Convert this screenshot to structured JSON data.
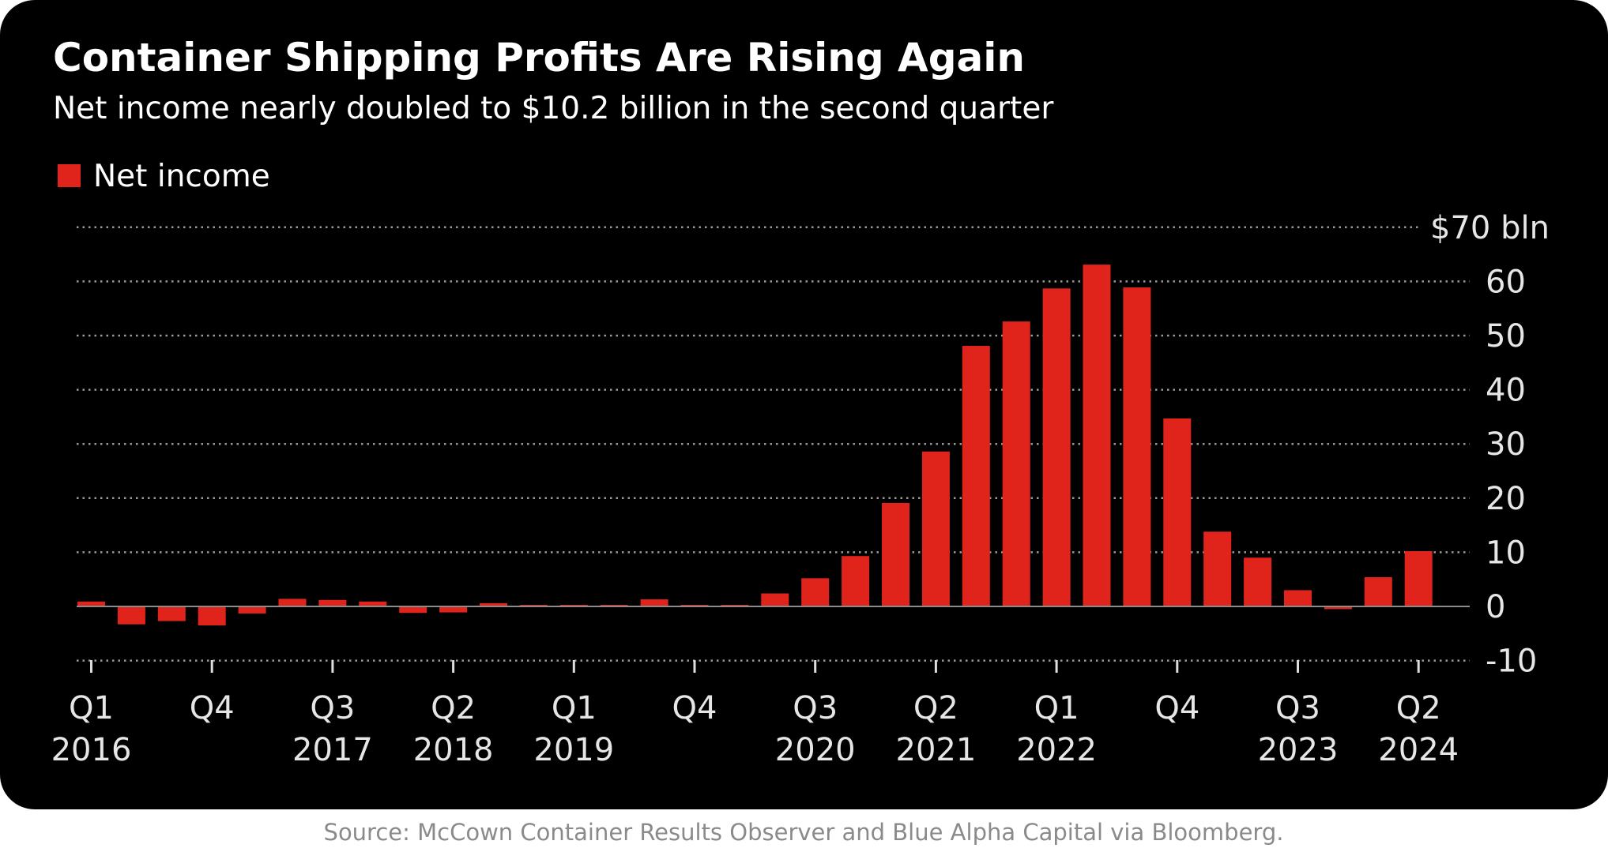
{
  "chart_data": {
    "type": "bar",
    "title": "Container Shipping Profits Are Rising Again",
    "subtitle": "Net income nearly doubled to $10.2 billion in the second quarter",
    "legend": [
      {
        "name": "Net income",
        "color": "#e0241c"
      }
    ],
    "legend_position": "top-left",
    "xlabel": "",
    "ylabel": "",
    "y_unit_label": "$70 bln",
    "ylim": [
      -10,
      70
    ],
    "yticks": [
      -10,
      0,
      10,
      20,
      30,
      40,
      50,
      60,
      70
    ],
    "ytick_labels": [
      "-10",
      "0",
      "10",
      "20",
      "30",
      "40",
      "50",
      "60",
      "$70 bln"
    ],
    "grid": true,
    "categories": [
      "Q1 2016",
      "Q2 2016",
      "Q3 2016",
      "Q4 2016",
      "Q1 2017",
      "Q2 2017",
      "Q3 2017",
      "Q4 2017",
      "Q1 2018",
      "Q2 2018",
      "Q3 2018",
      "Q4 2018",
      "Q1 2019",
      "Q2 2019",
      "Q3 2019",
      "Q4 2019",
      "Q1 2020",
      "Q2 2020",
      "Q3 2020",
      "Q4 2020",
      "Q1 2021",
      "Q2 2021",
      "Q3 2021",
      "Q4 2021",
      "Q1 2022",
      "Q2 2022",
      "Q3 2022",
      "Q4 2022",
      "Q1 2023",
      "Q2 2023",
      "Q3 2023",
      "Q4 2023",
      "Q1 2024",
      "Q2 2024"
    ],
    "series": [
      {
        "name": "Net income",
        "values": [
          0.9,
          -3.3,
          -2.7,
          -3.5,
          -1.3,
          1.4,
          1.2,
          0.9,
          -1.2,
          -1.1,
          0.6,
          0.1,
          0.1,
          0.1,
          1.3,
          0.1,
          0.1,
          2.4,
          5.2,
          9.3,
          19.1,
          28.6,
          48.1,
          52.6,
          58.7,
          63.1,
          58.9,
          34.7,
          13.8,
          9.0,
          3.0,
          -0.5,
          5.4,
          10.2
        ]
      }
    ],
    "xtick_labels": [
      {
        "index": 0,
        "line1": "Q1",
        "line2": "2016"
      },
      {
        "index": 3,
        "line1": "Q4",
        "line2": ""
      },
      {
        "index": 6,
        "line1": "Q3",
        "line2": "2017"
      },
      {
        "index": 9,
        "line1": "Q2",
        "line2": "2018"
      },
      {
        "index": 12,
        "line1": "Q1",
        "line2": "2019"
      },
      {
        "index": 15,
        "line1": "Q4",
        "line2": ""
      },
      {
        "index": 18,
        "line1": "Q3",
        "line2": "2020"
      },
      {
        "index": 21,
        "line1": "Q2",
        "line2": "2021"
      },
      {
        "index": 24,
        "line1": "Q1",
        "line2": "2022"
      },
      {
        "index": 27,
        "line1": "Q4",
        "line2": ""
      },
      {
        "index": 30,
        "line1": "Q3",
        "line2": "2023"
      },
      {
        "index": 33,
        "line1": "Q2",
        "line2": "2024"
      }
    ]
  },
  "source": "Source: McCown Container Results Observer and Blue Alpha Capital via Bloomberg.",
  "colors": {
    "background": "#000000",
    "bar": "#e0241c",
    "grid": "#9a9a9a",
    "zero_line": "#8c8c8c"
  }
}
